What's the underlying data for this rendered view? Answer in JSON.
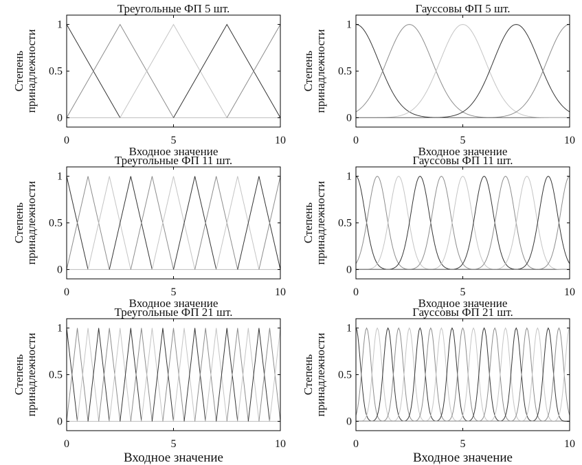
{
  "chart_data": [
    {
      "type": "line",
      "title": "Треугольные ФП  5 шт.",
      "xlabel": "Входное значение",
      "ylabel": [
        "Степень",
        "принадлежности"
      ],
      "mf_shape": "triangle",
      "mf_count": 5,
      "xlim": [
        0,
        10
      ],
      "ylim": [
        -0.1,
        1.1
      ],
      "xticks": [
        0,
        5,
        10
      ],
      "yticks": [
        0,
        0.5,
        1
      ],
      "grid": false
    },
    {
      "type": "line",
      "title": "Гауссовы ФП  5 шт.",
      "xlabel": "Входное значение",
      "ylabel": [
        "Степень",
        "принадлежности"
      ],
      "mf_shape": "gaussian",
      "mf_count": 5,
      "xlim": [
        0,
        10
      ],
      "ylim": [
        -0.1,
        1.1
      ],
      "xticks": [
        0,
        5,
        10
      ],
      "yticks": [
        0,
        0.5,
        1
      ],
      "grid": false
    },
    {
      "type": "line",
      "title": "Треугольные ФП  11 шт.",
      "xlabel": "Входное значение",
      "ylabel": [
        "Степень",
        "принадлежности"
      ],
      "mf_shape": "triangle",
      "mf_count": 11,
      "xlim": [
        0,
        10
      ],
      "ylim": [
        -0.1,
        1.1
      ],
      "xticks": [
        0,
        5,
        10
      ],
      "yticks": [
        0,
        0.5,
        1
      ],
      "grid": false
    },
    {
      "type": "line",
      "title": "Гауссовы ФП  11 шт.",
      "xlabel": "Входное значение",
      "ylabel": [
        "Степень",
        "принадлежности"
      ],
      "mf_shape": "gaussian",
      "mf_count": 11,
      "xlim": [
        0,
        10
      ],
      "ylim": [
        -0.1,
        1.1
      ],
      "xticks": [
        0,
        5,
        10
      ],
      "yticks": [
        0,
        0.5,
        1
      ],
      "grid": false
    },
    {
      "type": "line",
      "title": "Треугольные ФП  21 шт.",
      "xlabel": "Входное значение",
      "ylabel": [
        "Степень",
        "принадлежности"
      ],
      "mf_shape": "triangle",
      "mf_count": 21,
      "xlim": [
        0,
        10
      ],
      "ylim": [
        -0.1,
        1.1
      ],
      "xticks": [
        0,
        5,
        10
      ],
      "yticks": [
        0,
        0.5,
        1
      ],
      "grid": false
    },
    {
      "type": "line",
      "title": "Гауссовы ФП  21 шт.",
      "xlabel": "Входное значение",
      "ylabel": [
        "Степень",
        "принадлежности"
      ],
      "mf_shape": "gaussian",
      "mf_count": 21,
      "xlim": [
        0,
        10
      ],
      "ylim": [
        -0.1,
        1.1
      ],
      "xticks": [
        0,
        5,
        10
      ],
      "yticks": [
        0,
        0.5,
        1
      ],
      "grid": false
    }
  ],
  "colors": {
    "curves": [
      "#333333",
      "#8c8c8c",
      "#c4c4c4"
    ],
    "frame": "#000000"
  }
}
